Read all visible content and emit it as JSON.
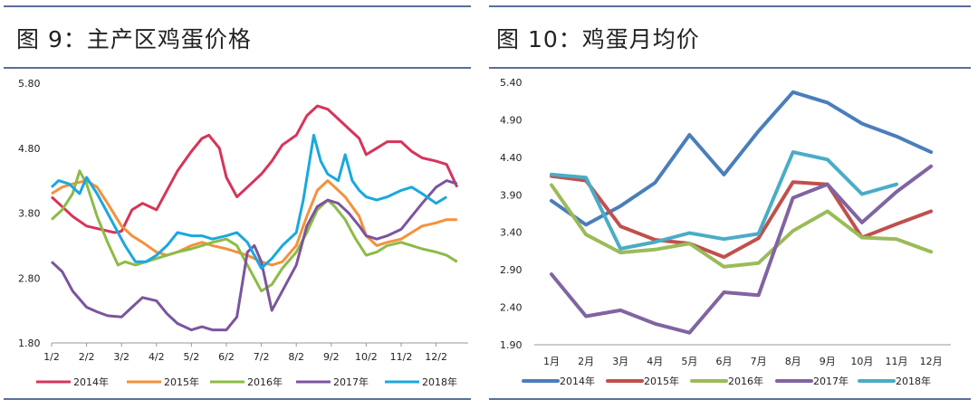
{
  "left_panel": {
    "title": "图 9：主产区鸡蛋价格"
  },
  "right_panel": {
    "title": "图 10：鸡蛋月均价"
  },
  "chart_data": [
    {
      "type": "line",
      "title": "图 9：主产区鸡蛋价格",
      "xlabel": "",
      "ylabel": "",
      "ylim": [
        1.8,
        5.8
      ],
      "yticks": [
        "5.80",
        "4.80",
        "3.80",
        "2.80",
        "1.80"
      ],
      "categories": [
        "1/2",
        "2/2",
        "3/2",
        "4/2",
        "5/2",
        "6/2",
        "7/2",
        "8/2",
        "9/2",
        "10/2",
        "11/2",
        "12/2"
      ],
      "x_note": "x values are month positions (1 = 1/2 … 12/2)",
      "legend_position": "bottom",
      "series": [
        {
          "name": "2014年",
          "color": "#d6345a",
          "x": [
            1.0,
            1.3,
            1.6,
            2.0,
            2.4,
            2.8,
            3.0,
            3.3,
            3.6,
            4.0,
            4.3,
            4.6,
            5.0,
            5.3,
            5.5,
            5.8,
            6.0,
            6.3,
            6.6,
            7.0,
            7.3,
            7.6,
            8.0,
            8.3,
            8.6,
            8.9,
            9.1,
            9.4,
            9.8,
            10.0,
            10.3,
            10.6,
            11.0,
            11.3,
            11.6,
            12.0,
            12.3,
            12.6
          ],
          "values": [
            4.05,
            3.9,
            3.75,
            3.6,
            3.55,
            3.5,
            3.52,
            3.85,
            3.95,
            3.85,
            4.15,
            4.45,
            4.75,
            4.95,
            5.0,
            4.8,
            4.35,
            4.05,
            4.2,
            4.4,
            4.6,
            4.85,
            5.0,
            5.3,
            5.45,
            5.4,
            5.3,
            5.15,
            4.95,
            4.7,
            4.8,
            4.9,
            4.9,
            4.75,
            4.65,
            4.6,
            4.55,
            4.2
          ]
        },
        {
          "name": "2015年",
          "color": "#f4913c",
          "x": [
            1.0,
            1.3,
            1.6,
            2.0,
            2.3,
            2.6,
            3.0,
            3.3,
            3.6,
            4.0,
            4.3,
            4.6,
            5.0,
            5.3,
            5.6,
            6.0,
            6.3,
            6.6,
            7.0,
            7.3,
            7.6,
            8.0,
            8.3,
            8.6,
            8.9,
            9.1,
            9.4,
            9.8,
            10.0,
            10.3,
            10.6,
            11.0,
            11.3,
            11.6,
            12.0,
            12.3,
            12.6
          ],
          "values": [
            4.1,
            4.2,
            4.25,
            4.3,
            4.2,
            3.95,
            3.6,
            3.45,
            3.35,
            3.2,
            3.15,
            3.2,
            3.3,
            3.35,
            3.3,
            3.25,
            3.2,
            3.15,
            3.05,
            3.0,
            3.05,
            3.3,
            3.75,
            4.15,
            4.3,
            4.2,
            4.05,
            3.75,
            3.45,
            3.3,
            3.35,
            3.4,
            3.5,
            3.6,
            3.65,
            3.7,
            3.7
          ]
        },
        {
          "name": "2016年",
          "color": "#8cbb46",
          "x": [
            1.0,
            1.3,
            1.6,
            1.8,
            2.0,
            2.3,
            2.6,
            2.9,
            3.1,
            3.4,
            3.7,
            4.0,
            4.3,
            4.6,
            5.0,
            5.3,
            5.6,
            6.0,
            6.3,
            6.6,
            7.0,
            7.3,
            7.6,
            8.0,
            8.3,
            8.6,
            8.9,
            9.1,
            9.4,
            9.7,
            10.0,
            10.3,
            10.6,
            11.0,
            11.3,
            11.6,
            12.0,
            12.3,
            12.6
          ],
          "values": [
            3.7,
            3.85,
            4.1,
            4.45,
            4.25,
            3.75,
            3.35,
            3.0,
            3.05,
            3.0,
            3.05,
            3.1,
            3.15,
            3.2,
            3.25,
            3.3,
            3.35,
            3.4,
            3.3,
            3.0,
            2.6,
            2.7,
            2.95,
            3.2,
            3.5,
            3.85,
            4.0,
            3.9,
            3.7,
            3.4,
            3.15,
            3.2,
            3.3,
            3.35,
            3.3,
            3.25,
            3.2,
            3.15,
            3.05
          ]
        },
        {
          "name": "2017年",
          "color": "#7b549e",
          "x": [
            1.0,
            1.3,
            1.6,
            2.0,
            2.3,
            2.6,
            3.0,
            3.3,
            3.6,
            4.0,
            4.3,
            4.6,
            5.0,
            5.3,
            5.6,
            6.0,
            6.3,
            6.6,
            6.8,
            7.0,
            7.3,
            7.6,
            8.0,
            8.3,
            8.6,
            8.9,
            9.2,
            9.5,
            9.8,
            10.0,
            10.3,
            10.6,
            11.0,
            11.3,
            11.6,
            12.0,
            12.3,
            12.6
          ],
          "values": [
            3.05,
            2.9,
            2.6,
            2.35,
            2.28,
            2.22,
            2.2,
            2.35,
            2.5,
            2.45,
            2.25,
            2.1,
            2.0,
            2.05,
            2.0,
            2.0,
            2.2,
            3.2,
            3.3,
            3.05,
            2.3,
            2.6,
            3.0,
            3.6,
            3.9,
            4.0,
            3.95,
            3.8,
            3.6,
            3.45,
            3.4,
            3.45,
            3.55,
            3.75,
            3.95,
            4.2,
            4.3,
            4.25
          ]
        },
        {
          "name": "2018年",
          "color": "#1aa8de",
          "x": [
            1.0,
            1.2,
            1.5,
            1.8,
            2.0,
            2.3,
            2.6,
            2.9,
            3.1,
            3.4,
            3.7,
            4.0,
            4.3,
            4.6,
            5.0,
            5.3,
            5.6,
            6.0,
            6.3,
            6.6,
            7.0,
            7.3,
            7.6,
            8.0,
            8.2,
            8.5,
            8.7,
            8.9,
            9.2,
            9.4,
            9.6,
            9.8,
            10.0,
            10.3,
            10.6,
            11.0,
            11.3,
            11.6,
            12.0,
            12.3
          ],
          "values": [
            4.2,
            4.3,
            4.25,
            4.1,
            4.35,
            4.1,
            3.8,
            3.5,
            3.3,
            3.05,
            3.05,
            3.15,
            3.3,
            3.5,
            3.45,
            3.45,
            3.4,
            3.45,
            3.5,
            3.35,
            2.95,
            3.1,
            3.3,
            3.5,
            4.0,
            5.0,
            4.6,
            4.4,
            4.3,
            4.7,
            4.3,
            4.15,
            4.05,
            4.0,
            4.05,
            4.15,
            4.2,
            4.1,
            3.95,
            4.05
          ]
        }
      ]
    },
    {
      "type": "line",
      "title": "图 10：鸡蛋月均价",
      "xlabel": "",
      "ylabel": "",
      "ylim": [
        1.9,
        5.4
      ],
      "yticks": [
        "5.40",
        "4.90",
        "4.40",
        "3.90",
        "3.40",
        "2.90",
        "2.40",
        "1.90"
      ],
      "categories": [
        "1月",
        "2月",
        "3月",
        "4月",
        "5月",
        "6月",
        "7月",
        "8月",
        "9月",
        "10月",
        "11月",
        "12月"
      ],
      "legend_position": "bottom",
      "series": [
        {
          "name": "2014年",
          "color": "#4a7ebb",
          "values": [
            3.82,
            3.5,
            3.75,
            4.06,
            4.7,
            4.17,
            4.75,
            5.27,
            5.13,
            4.85,
            4.68,
            4.47
          ]
        },
        {
          "name": "2015年",
          "color": "#c0504d",
          "values": [
            4.15,
            4.09,
            3.48,
            3.3,
            3.25,
            3.07,
            3.32,
            4.07,
            4.04,
            3.33,
            3.51,
            3.68
          ]
        },
        {
          "name": "2016年",
          "color": "#9bbb59",
          "values": [
            4.03,
            3.37,
            3.13,
            3.17,
            3.25,
            2.94,
            2.99,
            3.42,
            3.68,
            3.33,
            3.31,
            3.14
          ]
        },
        {
          "name": "2017年",
          "color": "#8064a2",
          "values": [
            2.84,
            2.28,
            2.36,
            2.18,
            2.06,
            2.6,
            2.56,
            3.86,
            4.04,
            3.53,
            3.94,
            4.28
          ]
        },
        {
          "name": "2018年",
          "color": "#4bacc6",
          "values": [
            4.17,
            4.13,
            3.18,
            3.27,
            3.39,
            3.31,
            3.38,
            4.47,
            4.37,
            3.91,
            4.04,
            null
          ]
        }
      ]
    }
  ]
}
